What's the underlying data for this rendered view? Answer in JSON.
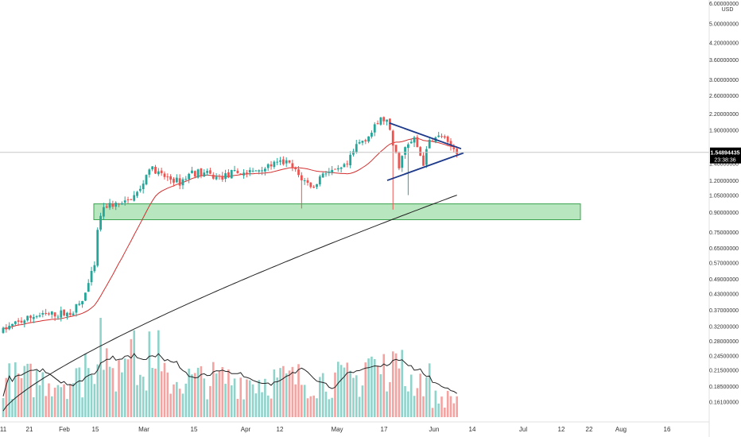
{
  "chart_data": {
    "type": "candlestick",
    "currency": "USD",
    "scale": "log",
    "ylim": [
      0.145,
      6.0
    ],
    "y_tick_labels": [
      "6.00000000",
      "5.00000000",
      "4.20000000",
      "3.60000000",
      "3.00000000",
      "2.60000000",
      "2.20000000",
      "1.90000000",
      "1.40000000",
      "1.20000000",
      "1.05000000",
      "0.90000000",
      "0.75000000",
      "0.65000000",
      "0.57000000",
      "0.49000000",
      "0.43000000",
      "0.37000000",
      "0.32000000",
      "0.28000000",
      "0.24500000",
      "0.21500000",
      "0.18500000",
      "0.16100000"
    ],
    "x_tick_labels": [
      "11",
      "21",
      "Feb",
      "15",
      "Mar",
      "15",
      "Apr",
      "12",
      "May",
      "17",
      "Jun",
      "14",
      "Jul",
      "12",
      "22",
      "Aug",
      "16"
    ],
    "last_price": "1.54894435",
    "countdown": "23:38:36",
    "support_zone": [
      0.84,
      0.97
    ],
    "triangle": {
      "upper": [
        [
          1.98
        ],
        [
          1.58
        ]
      ],
      "lower": [
        [
          1.22
        ],
        [
          1.53
        ]
      ]
    },
    "candles_count": 150
  },
  "colors": {
    "up": "#26a69a",
    "down": "#ef5350",
    "vol_up": "#8fd3cb",
    "vol_down": "#f4a3a1",
    "ma_fast": "#d32f2f",
    "ma_slow": "#222222",
    "trend": "#1e3a8a",
    "zone_fill": "#7dd18a",
    "zone_stroke": "#3ba24f",
    "price_line": "#c7c7c7",
    "axis_text": "#333333",
    "badge_bg": "#000000",
    "badge_text": "#ffffff"
  }
}
